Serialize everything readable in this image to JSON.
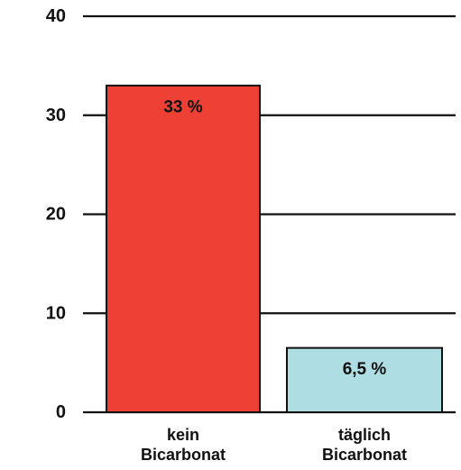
{
  "chart_data": {
    "type": "bar",
    "title": "",
    "xlabel": "",
    "ylabel": "",
    "ylim": [
      0,
      40
    ],
    "yticks": [
      0,
      10,
      20,
      30,
      40
    ],
    "grid": true,
    "categories": [
      [
        "kein",
        "Bicarbonat"
      ],
      [
        "täglich",
        "Bicarbonat"
      ]
    ],
    "values": [
      33,
      6.5
    ],
    "data_labels": [
      "33 %",
      "6,5 %"
    ],
    "colors": [
      "#ee4034",
      "#aedde3"
    ]
  }
}
